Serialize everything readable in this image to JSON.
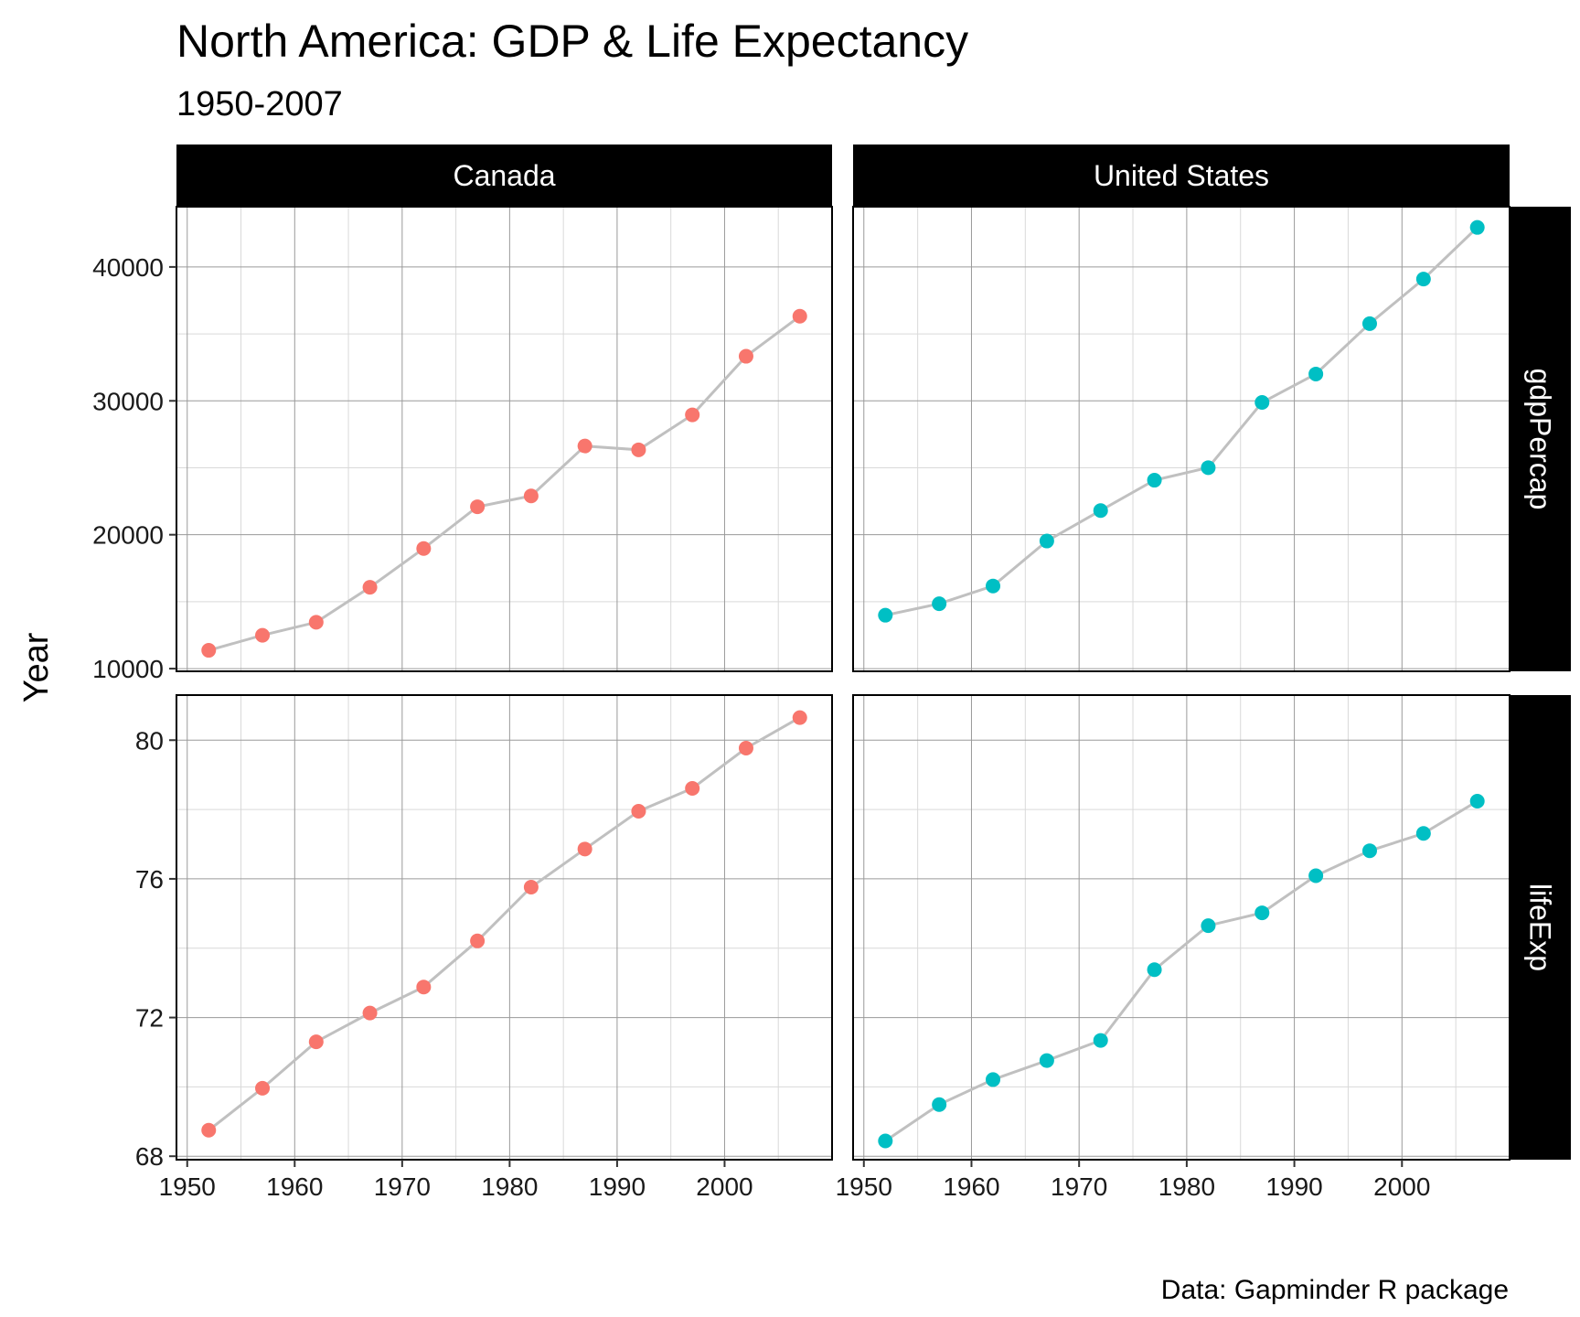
{
  "chart_data": {
    "type": "line",
    "title": "North America: GDP & Life Expectancy",
    "subtitle": "1950-2007",
    "ylabel": "Year",
    "caption": "Data: Gapminder R package",
    "x": [
      1952,
      1957,
      1962,
      1967,
      1972,
      1977,
      1982,
      1987,
      1992,
      1997,
      2002,
      2007
    ],
    "xlim": [
      1949,
      2010
    ],
    "x_ticks": [
      1950,
      1960,
      1970,
      1980,
      1990,
      2000
    ],
    "x_tick_labels": [
      "1950",
      "1960",
      "1970",
      "1980",
      "1990",
      "2000"
    ],
    "grid": true,
    "line_color": "#c0c0c0",
    "columns": [
      {
        "label": "Canada",
        "color": "#f8766d"
      },
      {
        "label": "United States",
        "color": "#00bfc4"
      }
    ],
    "rows": [
      {
        "label": "gdpPercap",
        "ylim": [
          9800,
          44500
        ],
        "y_ticks": [
          10000,
          20000,
          30000,
          40000
        ],
        "y_tick_labels": [
          "10000",
          "20000",
          "30000",
          "40000"
        ],
        "series": [
          {
            "values": [
              11367,
              12490,
              13462,
              16077,
              18971,
              22091,
              22899,
              26627,
              26343,
              28955,
              33329,
              36319
            ]
          },
          {
            "values": [
              13990,
              14847,
              16173,
              19530,
              21806,
              24073,
              25010,
              29884,
              32004,
              35767,
              39097,
              42952
            ]
          }
        ]
      },
      {
        "label": "lifeExp",
        "ylim": [
          67.9,
          81.3
        ],
        "y_ticks": [
          68,
          72,
          76,
          80
        ],
        "y_tick_labels": [
          "68",
          "72",
          "76",
          "80"
        ],
        "series": [
          {
            "values": [
              68.75,
              69.96,
              71.3,
              72.13,
              72.88,
              74.21,
              75.76,
              76.86,
              77.95,
              78.61,
              79.77,
              80.65
            ]
          },
          {
            "values": [
              68.44,
              69.49,
              70.21,
              70.76,
              71.34,
              73.38,
              74.65,
              75.02,
              76.09,
              76.81,
              77.31,
              78.24
            ]
          }
        ]
      }
    ]
  }
}
